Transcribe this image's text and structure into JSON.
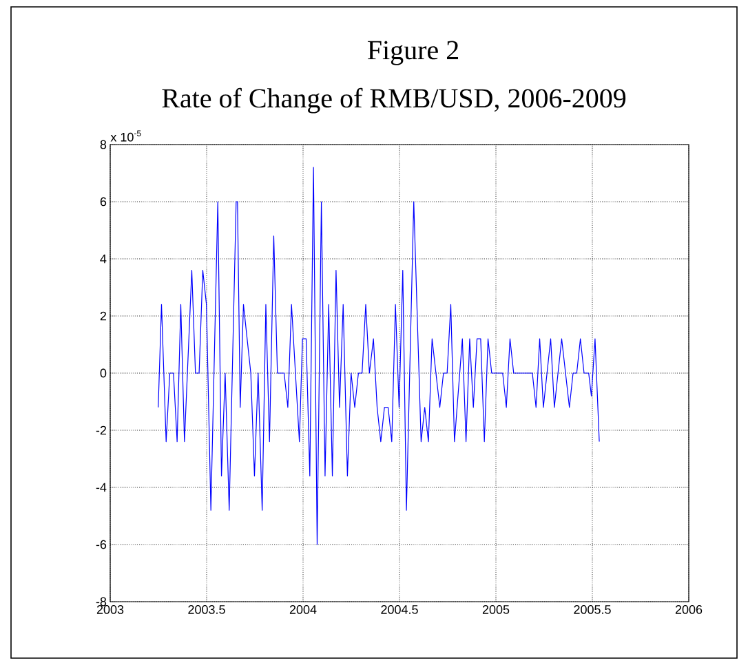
{
  "chart_data": {
    "type": "line",
    "title": "Figure 2",
    "subtitle": "Rate of Change of RMB/USD, 2006-2009",
    "annotations": [
      "x 10$^{-5}$"
    ],
    "x": [
      2003.249,
      2003.266,
      2003.29,
      2003.309,
      2003.328,
      2003.347,
      2003.366,
      2003.385,
      2003.423,
      2003.442,
      2003.461,
      2003.48,
      2003.499,
      2003.522,
      2003.558,
      2003.577,
      2003.596,
      2003.617,
      2003.653,
      2003.66,
      2003.674,
      2003.691,
      2003.729,
      2003.748,
      2003.767,
      2003.788,
      2003.807,
      2003.826,
      2003.848,
      2003.867,
      2003.902,
      2003.921,
      2003.94,
      2003.981,
      2003.997,
      2004.016,
      2004.035,
      2004.054,
      2004.073,
      2004.095,
      2004.114,
      2004.133,
      2004.152,
      2004.171,
      2004.189,
      2004.208,
      2004.23,
      2004.249,
      2004.268,
      2004.287,
      2004.306,
      2004.325,
      2004.344,
      2004.365,
      2004.384,
      2004.403,
      2004.422,
      2004.441,
      2004.46,
      2004.479,
      2004.498,
      2004.517,
      2004.536,
      2004.574,
      2004.612,
      2004.631,
      2004.65,
      2004.669,
      2004.709,
      2004.728,
      2004.747,
      2004.766,
      2004.785,
      2004.826,
      2004.845,
      2004.864,
      2004.883,
      2004.902,
      2004.921,
      2004.94,
      2004.959,
      2004.978,
      2005.035,
      2005.054,
      2005.073,
      2005.092,
      2005.189,
      2005.208,
      2005.227,
      2005.246,
      2005.284,
      2005.303,
      2005.341,
      2005.381,
      2005.4,
      2005.419,
      2005.438,
      2005.457,
      2005.481,
      2005.495,
      2005.514,
      2005.536
    ],
    "series": [
      {
        "color": "#0000ff",
        "values": [
          -1.2,
          2.4,
          -2.4,
          0,
          0,
          -2.4,
          2.4,
          -2.4,
          3.6,
          0,
          0,
          3.6,
          2.4,
          -4.8,
          6,
          -3.6,
          0,
          -4.8,
          6,
          6,
          -1.2,
          2.4,
          0,
          -3.6,
          0,
          -4.8,
          2.4,
          -2.4,
          4.8,
          0,
          0,
          -1.2,
          2.4,
          -2.4,
          1.2,
          1.2,
          -3.6,
          7.2,
          -6,
          6,
          -3.6,
          2.4,
          -3.6,
          3.6,
          -1.2,
          2.4,
          -3.6,
          0,
          -1.2,
          0,
          0,
          2.4,
          0,
          1.2,
          -1.2,
          -2.4,
          -1.2,
          -1.2,
          -2.4,
          2.4,
          -1.2,
          3.6,
          -4.8,
          6,
          -2.4,
          -1.2,
          -2.4,
          1.2,
          -1.2,
          0,
          0,
          2.4,
          -2.4,
          1.2,
          -2.4,
          1.2,
          -1.2,
          1.2,
          1.2,
          -2.4,
          1.2,
          0,
          0,
          -1.2,
          1.2,
          0,
          0,
          -1.2,
          1.2,
          -1.2,
          1.2,
          -1.2,
          1.2,
          -1.2,
          0,
          0,
          1.2,
          0,
          0,
          -0.8,
          1.2,
          -2.4
        ]
      }
    ],
    "xlim": [
      2003,
      2006
    ],
    "ylim": [
      -8,
      8
    ],
    "xticks": [
      2003,
      2003.5,
      2004,
      2004.5,
      2005,
      2005.5,
      2006
    ],
    "yticks": [
      -8,
      -6,
      -4,
      -2,
      0,
      2,
      4,
      6,
      8
    ],
    "grid": true
  }
}
